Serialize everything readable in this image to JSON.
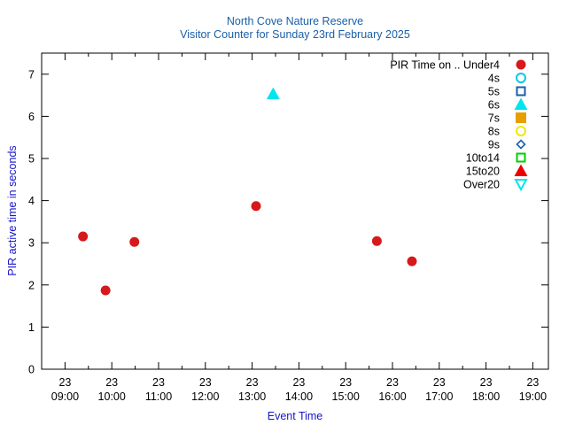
{
  "chart_data": {
    "type": "scatter",
    "title": "North Cove Nature Reserve",
    "subtitle": "Visitor Counter for Sunday 23rd February 2025",
    "xlabel": "Event Time",
    "ylabel": "PIR active time in seconds",
    "xlim": [
      "2025-02-23T08:30",
      "2025-02-23T19:20"
    ],
    "ylim": [
      0,
      7.5
    ],
    "yticks": [
      0,
      1,
      2,
      3,
      4,
      5,
      6,
      7
    ],
    "xticks": [
      {
        "t": "2025-02-23T09:00",
        "day": "23",
        "time": "09:00"
      },
      {
        "t": "2025-02-23T10:00",
        "day": "23",
        "time": "10:00"
      },
      {
        "t": "2025-02-23T11:00",
        "day": "23",
        "time": "11:00"
      },
      {
        "t": "2025-02-23T12:00",
        "day": "23",
        "time": "12:00"
      },
      {
        "t": "2025-02-23T13:00",
        "day": "23",
        "time": "13:00"
      },
      {
        "t": "2025-02-23T14:00",
        "day": "23",
        "time": "14:00"
      },
      {
        "t": "2025-02-23T15:00",
        "day": "23",
        "time": "15:00"
      },
      {
        "t": "2025-02-23T16:00",
        "day": "23",
        "time": "16:00"
      },
      {
        "t": "2025-02-23T17:00",
        "day": "23",
        "time": "17:00"
      },
      {
        "t": "2025-02-23T18:00",
        "day": "23",
        "time": "18:00"
      },
      {
        "t": "2025-02-23T19:00",
        "day": "23",
        "time": "19:00"
      }
    ],
    "legend_position": "top-right",
    "legend_title": "PIR Time on ..",
    "series": [
      {
        "name": "Under4",
        "marker": "circle-filled",
        "color": "#d7191c",
        "points": [
          {
            "x": "2025-02-23T09:23",
            "y": 3.15
          },
          {
            "x": "2025-02-23T09:52",
            "y": 1.87
          },
          {
            "x": "2025-02-23T10:29",
            "y": 3.02
          },
          {
            "x": "2025-02-23T13:05",
            "y": 3.87
          },
          {
            "x": "2025-02-23T15:40",
            "y": 3.04
          },
          {
            "x": "2025-02-23T16:25",
            "y": 2.56
          }
        ]
      },
      {
        "name": "4s",
        "marker": "circle-open",
        "color": "#00c8e8",
        "points": []
      },
      {
        "name": "5s",
        "marker": "square-open",
        "color": "#1a5fa8",
        "points": []
      },
      {
        "name": "6s",
        "marker": "triangle-filled",
        "color": "#00e5ee",
        "points": [
          {
            "x": "2025-02-23T13:27",
            "y": 6.53
          }
        ]
      },
      {
        "name": "7s",
        "marker": "square-filled",
        "color": "#e69f00",
        "points": []
      },
      {
        "name": "8s",
        "marker": "circle-open",
        "color": "#f0e800",
        "points": []
      },
      {
        "name": "9s",
        "marker": "diamond-open",
        "color": "#1a5fa8",
        "points": []
      },
      {
        "name": "10to14",
        "marker": "square-open",
        "color": "#00d000",
        "points": []
      },
      {
        "name": "15to20",
        "marker": "triangle-filled",
        "color": "#ee0000",
        "points": []
      },
      {
        "name": "Over20",
        "marker": "triangle-down-open",
        "color": "#00e5ee",
        "points": []
      }
    ]
  }
}
